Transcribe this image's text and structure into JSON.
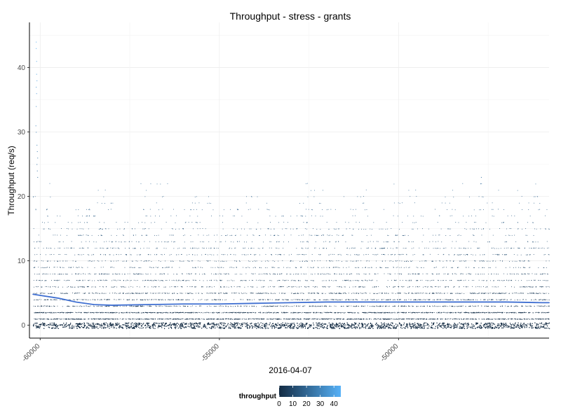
{
  "chart_data": {
    "type": "scatter",
    "title": "Throughput - stress - grants",
    "xlabel": "2016-04-07",
    "ylabel": "Throughput (req/s)",
    "xlim": [
      -60300,
      -45800
    ],
    "ylim": [
      -2,
      47
    ],
    "x_ticks": [
      -60000,
      -55000,
      -50000
    ],
    "x_tick_labels": [
      "-60000",
      "-55000",
      "-50000"
    ],
    "y_ticks": [
      0,
      10,
      20,
      30,
      40
    ],
    "y_tick_labels": [
      "0",
      "10",
      "20",
      "30",
      "40"
    ],
    "grid": true,
    "legend": {
      "title": "throughput",
      "position": "bottom",
      "type": "colorbar",
      "range": [
        0,
        45
      ],
      "ticks": [
        0,
        10,
        20,
        30,
        40
      ],
      "tick_labels": [
        "0",
        "10",
        "20",
        "30",
        "40"
      ],
      "color_low": "#132b43",
      "color_high": "#56b1f7"
    },
    "series": [
      {
        "type": "points",
        "x_range": [
          -60200,
          -45800
        ],
        "y_values": [
          0,
          1,
          2,
          3,
          4,
          5,
          6,
          7,
          8,
          9,
          10,
          11,
          12,
          13,
          14,
          15,
          16,
          17,
          18,
          19,
          20,
          21,
          22
        ],
        "outlier_points": [
          {
            "x": -60120,
            "y": 44
          },
          {
            "x": -60120,
            "y": 43
          },
          {
            "x": -60110,
            "y": 41
          },
          {
            "x": -60110,
            "y": 39
          },
          {
            "x": -60100,
            "y": 38
          },
          {
            "x": -60120,
            "y": 37
          },
          {
            "x": -60110,
            "y": 36
          },
          {
            "x": -60120,
            "y": 34
          },
          {
            "x": -60130,
            "y": 31
          },
          {
            "x": -60120,
            "y": 30
          },
          {
            "x": -60100,
            "y": 28
          },
          {
            "x": -60090,
            "y": 27
          },
          {
            "x": -60080,
            "y": 26
          },
          {
            "x": -60100,
            "y": 25
          },
          {
            "x": -60090,
            "y": 24
          },
          {
            "x": -60080,
            "y": 23
          },
          {
            "x": -47700,
            "y": 23
          },
          {
            "x": -47720,
            "y": 22
          }
        ]
      },
      {
        "type": "smooth",
        "x": [
          -60200,
          -59500,
          -59000,
          -58500,
          -58000,
          -57000,
          -56000,
          -55000,
          -54000,
          -53000,
          -52000,
          -51000,
          -50000,
          -49000,
          -48000,
          -47000,
          -46000,
          -45800
        ],
        "y": [
          4.8,
          4.2,
          3.6,
          3.2,
          3.1,
          3.2,
          3.3,
          3.3,
          3.4,
          3.5,
          3.6,
          3.6,
          3.6,
          3.6,
          3.6,
          3.6,
          3.5,
          3.5
        ]
      }
    ]
  }
}
